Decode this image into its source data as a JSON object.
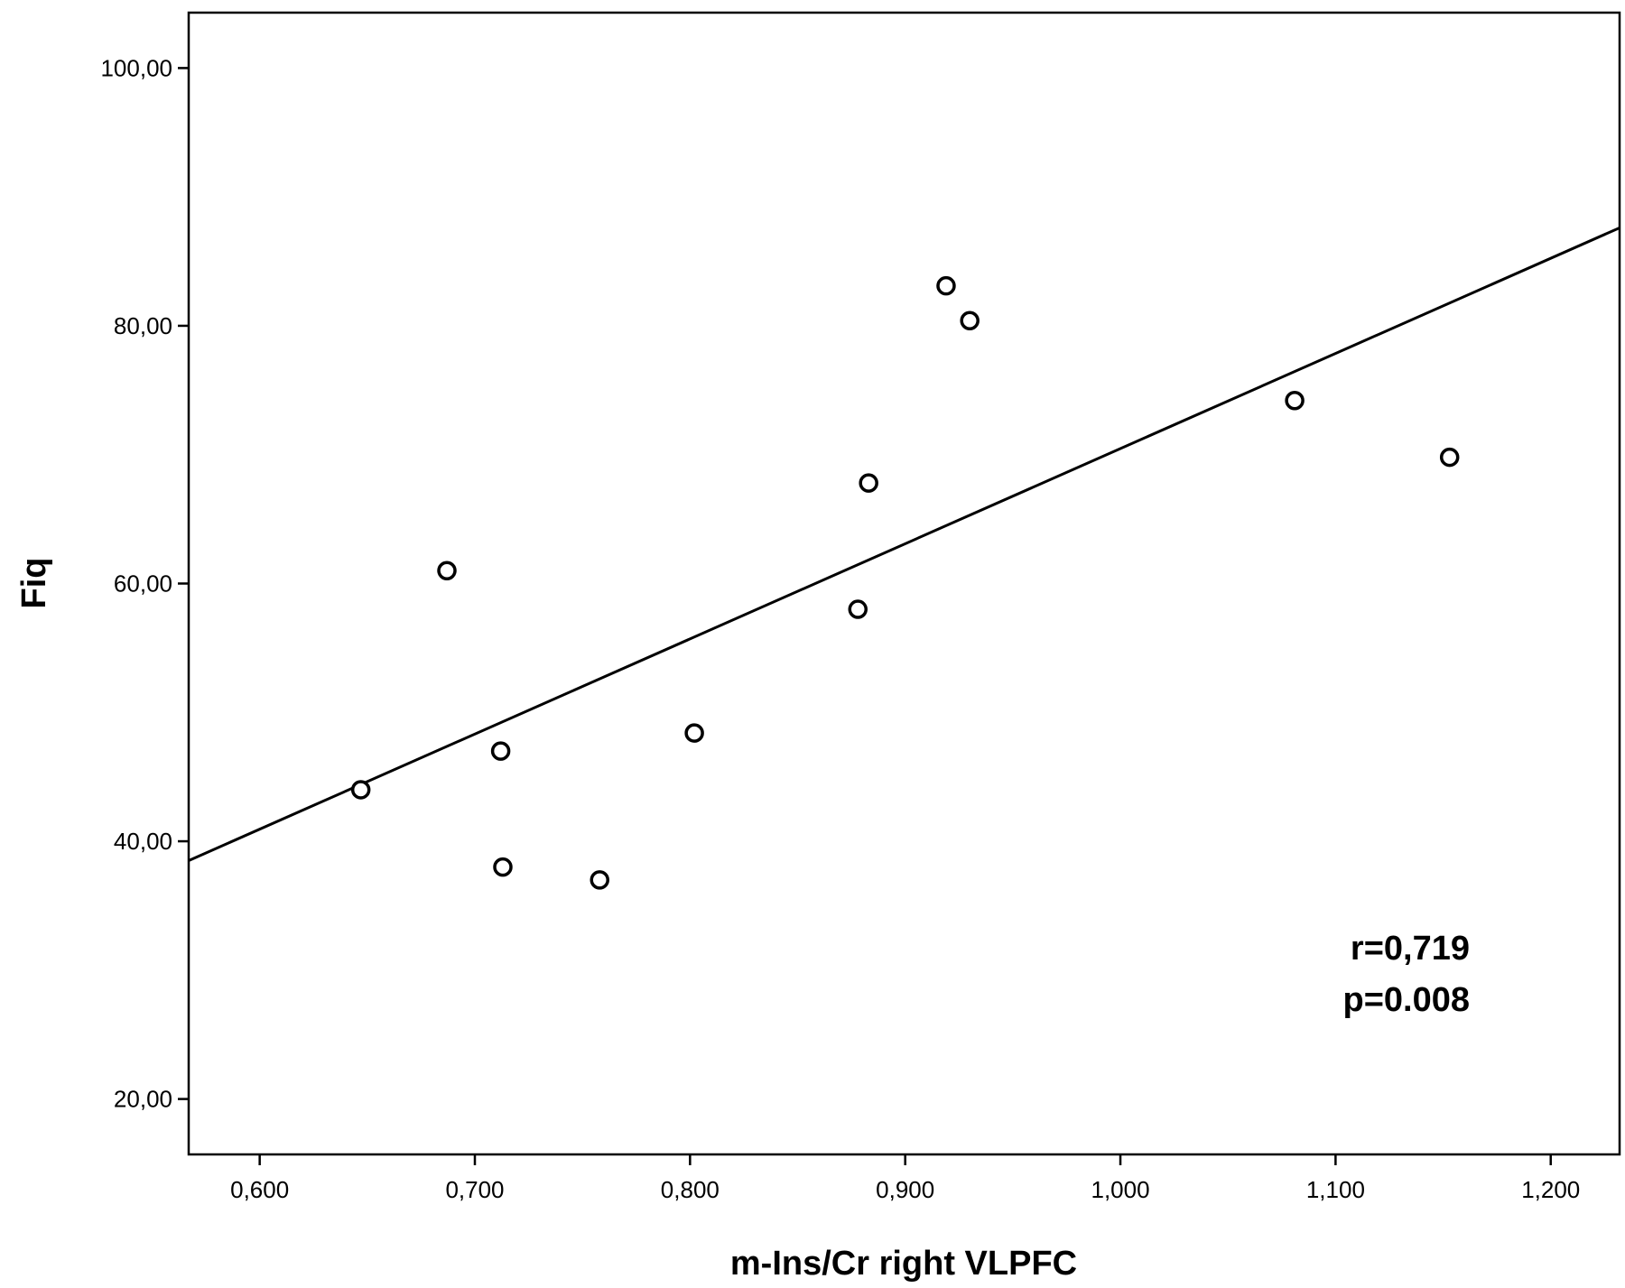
{
  "chart_data": {
    "type": "scatter",
    "xlabel": "m-Ins/Cr right VLPFC",
    "ylabel": "Fiq",
    "xlim": [
      0.567,
      1.232
    ],
    "ylim": [
      15.7,
      104.3
    ],
    "x_ticks": [
      0.6,
      0.7,
      0.8,
      0.9,
      1.0,
      1.1,
      1.2
    ],
    "x_tick_labels": [
      "0,600",
      "0,700",
      "0,800",
      "0,900",
      "1,000",
      "1,100",
      "1,200"
    ],
    "y_ticks": [
      20,
      40,
      60,
      80,
      100
    ],
    "y_tick_labels": [
      "20,00",
      "40,00",
      "60,00",
      "80,00",
      "100,00"
    ],
    "grid": false,
    "legend": "none",
    "series": [
      {
        "x": [
          0.647,
          0.687,
          0.712,
          0.713,
          0.758,
          0.802,
          0.878,
          0.883,
          0.919,
          0.93,
          1.081,
          1.153
        ],
        "y": [
          44.0,
          61.0,
          47.0,
          38.0,
          37.0,
          48.4,
          58.0,
          67.8,
          83.1,
          80.4,
          74.2,
          69.8
        ]
      }
    ],
    "fit_line": {
      "x": [
        0.567,
        1.232
      ],
      "y": [
        38.5,
        87.6
      ]
    },
    "annotations": [
      "r=0,719",
      "p=0.008"
    ],
    "colors": {
      "axis": "#000000",
      "marker_stroke": "#000000",
      "marker_fill": "#ffffff",
      "fit": "#000000"
    }
  }
}
